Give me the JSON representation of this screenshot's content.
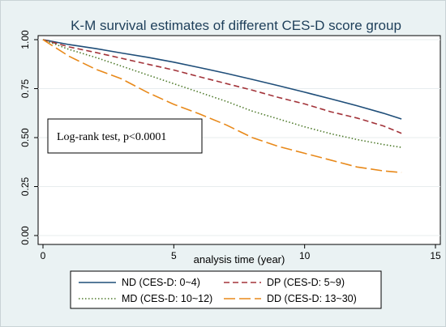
{
  "chart_data": {
    "type": "line",
    "title": "K-M survival estimates of different CES-D score group",
    "xlabel": "analysis time (year)",
    "ylabel": "",
    "xlim": [
      0,
      15
    ],
    "ylim": [
      0,
      1
    ],
    "x_ticks": [
      "0",
      "5",
      "10",
      "15"
    ],
    "y_ticks": [
      "0.00",
      "0.25",
      "0.50",
      "0.75",
      "1.00"
    ],
    "grid": true,
    "legend_position": "bottom",
    "annotation": "Log-rank test, p<0.0001",
    "series": [
      {
        "name": "ND (CES-D: 0~4)",
        "color": "#1f4e79",
        "dash": "solid",
        "points": [
          [
            0,
            1.0
          ],
          [
            1,
            0.975
          ],
          [
            2,
            0.955
          ],
          [
            3,
            0.932
          ],
          [
            4,
            0.91
          ],
          [
            5,
            0.885
          ],
          [
            6,
            0.857
          ],
          [
            7,
            0.828
          ],
          [
            8,
            0.797
          ],
          [
            9,
            0.765
          ],
          [
            10,
            0.732
          ],
          [
            11,
            0.698
          ],
          [
            12,
            0.663
          ],
          [
            13,
            0.625
          ],
          [
            13.7,
            0.595
          ]
        ]
      },
      {
        "name": "DP (CES-D: 5~9)",
        "color": "#a3343a",
        "dash": "dash",
        "points": [
          [
            0,
            1.0
          ],
          [
            1,
            0.963
          ],
          [
            2,
            0.935
          ],
          [
            3,
            0.905
          ],
          [
            4,
            0.875
          ],
          [
            5,
            0.845
          ],
          [
            6,
            0.81
          ],
          [
            7,
            0.776
          ],
          [
            8,
            0.742
          ],
          [
            9,
            0.705
          ],
          [
            10,
            0.672
          ],
          [
            11,
            0.632
          ],
          [
            12,
            0.6
          ],
          [
            13,
            0.56
          ],
          [
            13.7,
            0.522
          ]
        ]
      },
      {
        "name": "MD (CES-D: 10~12)",
        "color": "#4f7a2c",
        "dash": "dot",
        "points": [
          [
            0,
            1.0
          ],
          [
            1,
            0.95
          ],
          [
            2,
            0.91
          ],
          [
            3,
            0.865
          ],
          [
            4,
            0.82
          ],
          [
            5,
            0.775
          ],
          [
            6,
            0.73
          ],
          [
            7,
            0.685
          ],
          [
            8,
            0.635
          ],
          [
            9,
            0.595
          ],
          [
            10,
            0.555
          ],
          [
            11,
            0.52
          ],
          [
            12,
            0.49
          ],
          [
            13,
            0.465
          ],
          [
            13.7,
            0.45
          ]
        ]
      },
      {
        "name": "DD (CES-D: 13~30)",
        "color": "#e8891a",
        "dash": "longdash",
        "points": [
          [
            0,
            1.0
          ],
          [
            1,
            0.915
          ],
          [
            2,
            0.85
          ],
          [
            3,
            0.8
          ],
          [
            4,
            0.73
          ],
          [
            5,
            0.67
          ],
          [
            6,
            0.62
          ],
          [
            7,
            0.565
          ],
          [
            8,
            0.5
          ],
          [
            9,
            0.455
          ],
          [
            10,
            0.42
          ],
          [
            11,
            0.385
          ],
          [
            12,
            0.35
          ],
          [
            13,
            0.33
          ],
          [
            13.7,
            0.322
          ]
        ]
      }
    ]
  }
}
